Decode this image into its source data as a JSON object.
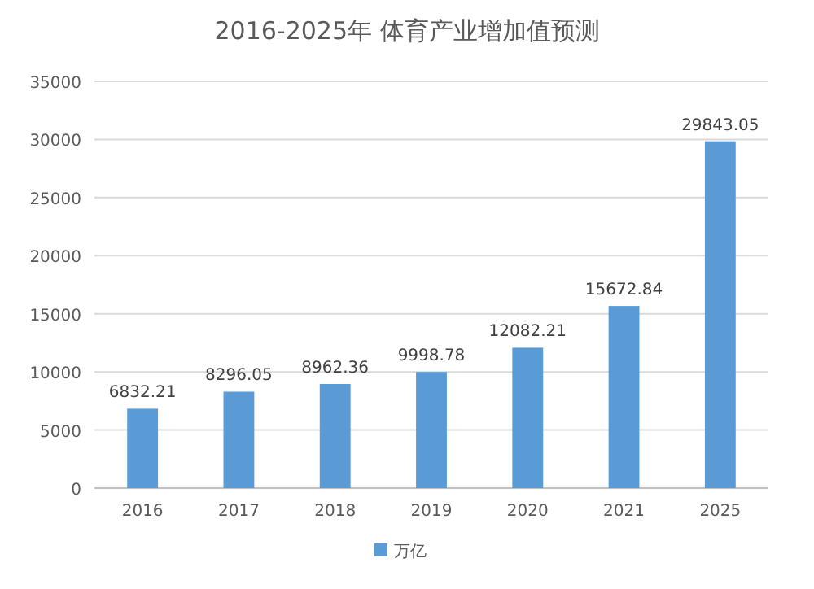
{
  "chart_data": {
    "type": "bar",
    "title": "2016-2025年 体育产业增加值预测",
    "categories": [
      "2016",
      "2017",
      "2018",
      "2019",
      "2020",
      "2021",
      "2025"
    ],
    "series": [
      {
        "name": "万亿",
        "color": "#5b9bd5",
        "values": [
          6832.21,
          8296.05,
          8962.36,
          9998.78,
          12082.21,
          15672.84,
          29843.05
        ]
      }
    ],
    "ylim": [
      0,
      35000
    ],
    "yticks": [
      0,
      5000,
      10000,
      15000,
      20000,
      25000,
      30000,
      35000
    ],
    "grid": "y",
    "legend": "bottom",
    "data_labels": true
  }
}
